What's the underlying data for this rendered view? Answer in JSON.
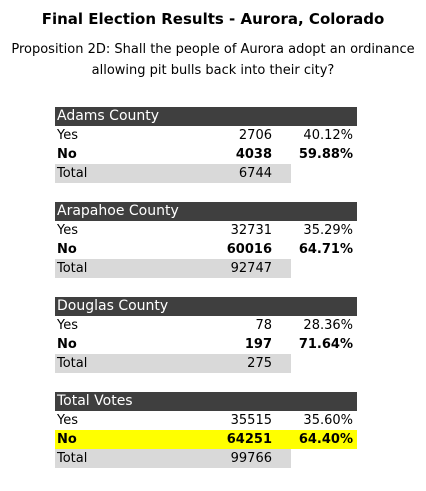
{
  "header": {
    "title": "Final Election Results - Aurora, Colorado",
    "subtitle_lines": [
      "Proposition 2D: Shall the people of Aurora adopt an ordinance",
      "allowing pit bulls back into their city?"
    ]
  },
  "sections": [
    {
      "name": "Adams County",
      "rows": [
        {
          "label": "Yes",
          "count": 2706,
          "percent": "40.12%"
        },
        {
          "label": "No",
          "count": 4038,
          "percent": "59.88%",
          "bold": true
        },
        {
          "label": "Total",
          "count": 6744,
          "shaded": true
        }
      ]
    },
    {
      "name": "Arapahoe County",
      "rows": [
        {
          "label": "Yes",
          "count": 32731,
          "percent": "35.29%"
        },
        {
          "label": "No",
          "count": 60016,
          "percent": "64.71%",
          "bold": true
        },
        {
          "label": "Total",
          "count": 92747,
          "shaded": true
        }
      ]
    },
    {
      "name": "Douglas County",
      "rows": [
        {
          "label": "Yes",
          "count": 78,
          "percent": "28.36%"
        },
        {
          "label": "No",
          "count": 197,
          "percent": "71.64%",
          "bold": true
        },
        {
          "label": "Total",
          "count": 275,
          "shaded": true
        }
      ]
    },
    {
      "name": "Total Votes",
      "rows": [
        {
          "label": "Yes",
          "count": 35515,
          "percent": "35.60%"
        },
        {
          "label": "No",
          "count": 64251,
          "percent": "64.40%",
          "bold": true,
          "highlight": "#ffff00"
        },
        {
          "label": "Total",
          "count": 99766,
          "shaded": true
        }
      ]
    }
  ]
}
